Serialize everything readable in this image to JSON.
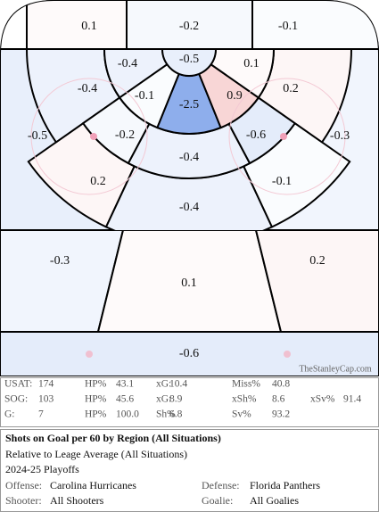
{
  "regions": [
    {
      "value": -0.6
    },
    {
      "value": -0.3
    },
    {
      "value": 0.1
    },
    {
      "value": 0.2
    },
    {
      "value": -0.5
    },
    {
      "value": -0.3
    },
    {
      "value": 0.2
    },
    {
      "value": -0.4
    },
    {
      "value": -0.1
    },
    {
      "value": -0.4
    },
    {
      "value": -0.2
    },
    {
      "value": -0.4
    },
    {
      "value": -0.6
    },
    {
      "value": 0.2
    },
    {
      "value": -0.4
    },
    {
      "value": -0.1
    },
    {
      "value": -2.5
    },
    {
      "value": 0.9
    },
    {
      "value": 0.1
    },
    {
      "value": -0.5
    },
    {
      "value": 0.1
    },
    {
      "value": -0.2
    },
    {
      "value": -0.1
    }
  ],
  "watermark": "TheStanleyCap.com",
  "stats": {
    "rows": [
      [
        "USAT:",
        "174",
        "HP%",
        "43.1",
        "xG:",
        "10.4",
        "Miss%",
        "40.8"
      ],
      [
        "SOG:",
        "103",
        "HP%",
        "45.6",
        "xG:",
        "8.9",
        "xSh%",
        "8.6",
        "xSv%",
        "91.4"
      ],
      [
        "G:",
        "7",
        "HP%",
        "100.0",
        "Sh%",
        "6.8",
        "Sv%",
        "93.2"
      ]
    ]
  },
  "info": {
    "title": "Shots on Goal per 60 by Region (All Situations)",
    "subtitle": "Relative to Leage Average (All Situations)",
    "season": "2024-25 Playoffs",
    "offense_label": "Offense:",
    "offense": "Carolina Hurricanes",
    "defense_label": "Defense:",
    "defense": "Florida Panthers",
    "shooter_label": "Shooter:",
    "shooter": "All Shooters",
    "goalie_label": "Goalie:",
    "goalie": "All Goalies"
  }
}
